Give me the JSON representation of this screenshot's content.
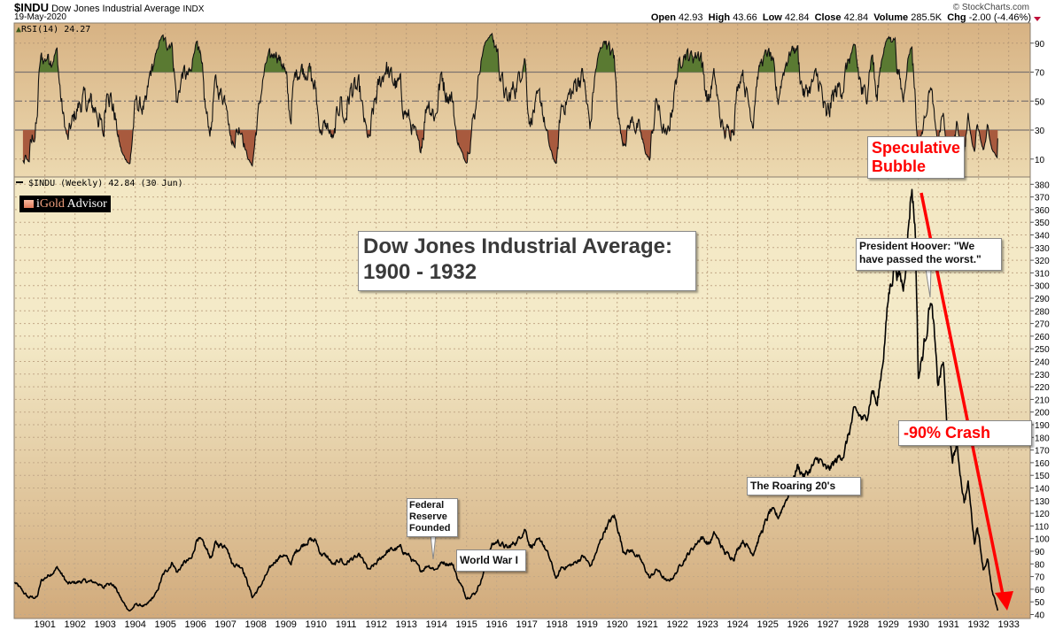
{
  "header": {
    "symbol": "$INDU",
    "name": "Dow Jones Industrial Average",
    "exchange": "INDX",
    "date": "19-May-2020",
    "brand": "© StockCharts.com",
    "quote": {
      "open_label": "Open",
      "open": "42.93",
      "high_label": "High",
      "high": "43.66",
      "low_label": "Low",
      "low": "42.84",
      "close_label": "Close",
      "close": "42.84",
      "volume_label": "Volume",
      "volume": "285.5K",
      "chg_label": "Chg",
      "chg": "-2.00 (-4.46%)",
      "chg_icon": "down-triangle-icon",
      "chg_color": "#c0103a"
    }
  },
  "logo": {
    "text_i": "i",
    "text_gold": "Gold",
    "text_advisor": " Advisor"
  },
  "annotations": {
    "title": [
      "Dow Jones Industrial Average:",
      "1900 - 1932"
    ],
    "bubble": [
      "Speculative",
      "Bubble"
    ],
    "hoover": [
      "President Hoover: \"We",
      "have passed the worst.\""
    ],
    "crash": "-90% Crash",
    "roaring": "The Roaring 20's",
    "fed": [
      "Federal",
      "Reserve",
      "Founded"
    ],
    "ww1": "World War I",
    "highlight_color": "#ff0000"
  },
  "chart_data": [
    {
      "type": "line",
      "panel": "RSI",
      "legend": "RSI(14) 24.27",
      "indicator": "RSI(14)",
      "last_value": 24.27,
      "ylim": [
        0,
        100
      ],
      "yticks": [
        10,
        30,
        50,
        70,
        90
      ],
      "reference_lines": [
        30,
        50,
        70
      ],
      "overbought_fill_color": "#5a7a32",
      "oversold_fill_color": "#a85a3e",
      "grid": true
    },
    {
      "type": "line",
      "panel": "price",
      "legend": "$INDU (Weekly) 42.84 (30 Jun)",
      "x_unit": "year",
      "xlim": [
        1900,
        1933
      ],
      "xticks": [
        "1901",
        "1902",
        "1903",
        "1904",
        "1905",
        "1906",
        "1907",
        "1908",
        "1909",
        "1910",
        "1911",
        "1912",
        "1913",
        "1914",
        "1915",
        "1916",
        "1917",
        "1918",
        "1919",
        "1920",
        "1921",
        "1922",
        "1923",
        "1924",
        "1925",
        "1926",
        "1927",
        "1928",
        "1929",
        "1930",
        "1931",
        "1932",
        "1933"
      ],
      "ylim": [
        40,
        380
      ],
      "yticks": [
        40,
        50,
        60,
        70,
        80,
        90,
        100,
        110,
        120,
        130,
        140,
        150,
        160,
        170,
        180,
        190,
        200,
        210,
        220,
        230,
        240,
        250,
        260,
        270,
        280,
        290,
        300,
        310,
        320,
        330,
        340,
        350,
        360,
        370,
        380
      ],
      "grid": true,
      "points": [
        [
          1900.0,
          65.3
        ],
        [
          1900.44,
          53.6
        ],
        [
          1900.74,
          53.6
        ],
        [
          1900.88,
          66.4
        ],
        [
          1901.42,
          77
        ],
        [
          1901.76,
          64
        ],
        [
          1902.25,
          66.4
        ],
        [
          1902.74,
          65.3
        ],
        [
          1902.94,
          60.6
        ],
        [
          1903.09,
          66.4
        ],
        [
          1903.33,
          61.8
        ],
        [
          1903.58,
          50
        ],
        [
          1903.82,
          42.7
        ],
        [
          1904.02,
          47.8
        ],
        [
          1904.36,
          46.6
        ],
        [
          1904.71,
          57
        ],
        [
          1904.9,
          70
        ],
        [
          1905.24,
          81.6
        ],
        [
          1905.39,
          73
        ],
        [
          1905.59,
          80.4
        ],
        [
          1905.88,
          83.9
        ],
        [
          1906.06,
          101.9
        ],
        [
          1906.27,
          94.4
        ],
        [
          1906.52,
          85.1
        ],
        [
          1906.66,
          95.6
        ],
        [
          1907.06,
          94.4
        ],
        [
          1907.21,
          80.4
        ],
        [
          1907.55,
          78.1
        ],
        [
          1907.89,
          53.6
        ],
        [
          1908.14,
          61.8
        ],
        [
          1908.38,
          72.3
        ],
        [
          1908.68,
          83.9
        ],
        [
          1908.92,
          87.4
        ],
        [
          1909.16,
          80.4
        ],
        [
          1909.36,
          90.9
        ],
        [
          1909.75,
          99.1
        ],
        [
          1910.0,
          97.9
        ],
        [
          1910.15,
          88.6
        ],
        [
          1910.39,
          85.1
        ],
        [
          1910.59,
          78.1
        ],
        [
          1910.83,
          84.6
        ],
        [
          1910.93,
          79.3
        ],
        [
          1911.18,
          83.9
        ],
        [
          1911.47,
          85.6
        ],
        [
          1911.76,
          74.6
        ],
        [
          1912.01,
          80.4
        ],
        [
          1912.35,
          89.8
        ],
        [
          1912.79,
          92.6
        ],
        [
          1913.09,
          86.3
        ],
        [
          1913.48,
          74.6
        ],
        [
          1913.72,
          79.3
        ],
        [
          1913.97,
          75.8
        ],
        [
          1914.21,
          81.6
        ],
        [
          1914.56,
          79.3
        ],
        [
          1914.66,
          71.1
        ],
        [
          1915.0,
          53.6
        ],
        [
          1915.29,
          57
        ],
        [
          1915.49,
          67.6
        ],
        [
          1915.83,
          94.4
        ],
        [
          1916.03,
          97.9
        ],
        [
          1916.37,
          92.1
        ],
        [
          1916.71,
          99.1
        ],
        [
          1916.94,
          108.4
        ],
        [
          1917.11,
          94.4
        ],
        [
          1917.5,
          97.9
        ],
        [
          1917.74,
          85.1
        ],
        [
          1917.99,
          67.6
        ],
        [
          1918.14,
          76.9
        ],
        [
          1918.53,
          79.3
        ],
        [
          1918.87,
          86.3
        ],
        [
          1919.12,
          78.1
        ],
        [
          1919.36,
          92.1
        ],
        [
          1919.61,
          108.4
        ],
        [
          1919.9,
          117.8
        ],
        [
          1920.05,
          106.1
        ],
        [
          1920.19,
          90.9
        ],
        [
          1920.54,
          89.8
        ],
        [
          1920.78,
          82.8
        ],
        [
          1921.08,
          68.8
        ],
        [
          1921.32,
          75.8
        ],
        [
          1921.66,
          65.3
        ],
        [
          1921.91,
          71.1
        ],
        [
          1922.16,
          81.6
        ],
        [
          1922.5,
          92.1
        ],
        [
          1922.79,
          101.4
        ],
        [
          1923.04,
          95.6
        ],
        [
          1923.24,
          103.8
        ],
        [
          1923.58,
          88.6
        ],
        [
          1923.87,
          85.1
        ],
        [
          1924.16,
          99.1
        ],
        [
          1924.51,
          88.6
        ],
        [
          1924.75,
          102.6
        ],
        [
          1925.1,
          122.4
        ],
        [
          1925.34,
          116.6
        ],
        [
          1925.68,
          135.2
        ],
        [
          1925.98,
          157.3
        ],
        [
          1926.22,
          149.2
        ],
        [
          1926.71,
          163.2
        ],
        [
          1926.96,
          152.7
        ],
        [
          1927.55,
          169
        ],
        [
          1927.84,
          197
        ],
        [
          1927.94,
          199.3
        ],
        [
          1928.24,
          192.3
        ],
        [
          1928.48,
          219.1
        ],
        [
          1928.63,
          204
        ],
        [
          1928.82,
          241.3
        ],
        [
          1929.02,
          292.6
        ],
        [
          1929.21,
          318.3
        ],
        [
          1929.51,
          297.3
        ],
        [
          1929.66,
          343.9
        ],
        [
          1929.78,
          380.2
        ],
        [
          1929.9,
          343.9
        ],
        [
          1930.0,
          227.3
        ],
        [
          1930.15,
          246
        ],
        [
          1930.29,
          269.3
        ],
        [
          1930.39,
          290.3
        ],
        [
          1930.49,
          274
        ],
        [
          1930.64,
          220.4
        ],
        [
          1930.83,
          240.2
        ],
        [
          1930.93,
          194
        ],
        [
          1931.13,
          162
        ],
        [
          1931.27,
          173.7
        ],
        [
          1931.52,
          129.4
        ],
        [
          1931.66,
          143.4
        ],
        [
          1931.86,
          96.8
        ],
        [
          1931.96,
          110.8
        ],
        [
          1932.16,
          75.8
        ],
        [
          1932.3,
          83.9
        ],
        [
          1932.45,
          57.1
        ],
        [
          1932.65,
          43.1
        ]
      ]
    }
  ]
}
